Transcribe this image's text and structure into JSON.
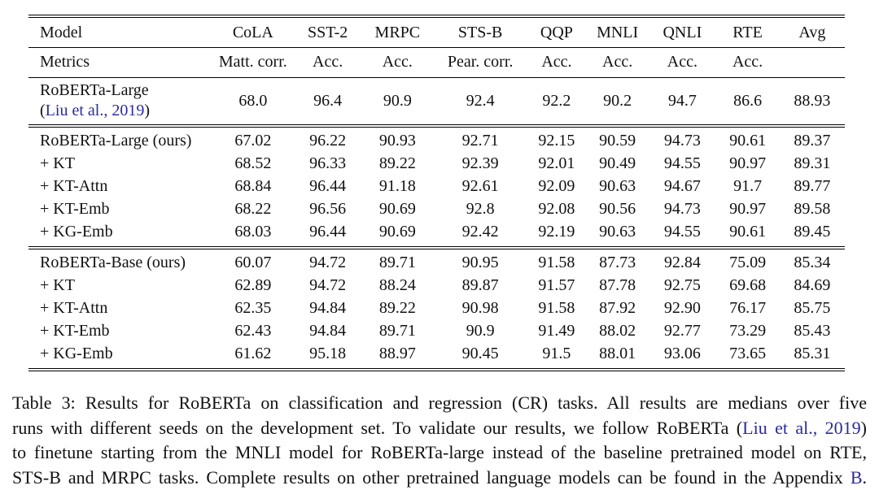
{
  "page": {
    "background": "#ffffff",
    "text_color": "#111111",
    "link_color": "#2a2aa0"
  },
  "table": {
    "header": {
      "model_label": "Model",
      "metrics_label": "Metrics",
      "tasks": [
        "CoLA",
        "SST-2",
        "MRPC",
        "STS-B",
        "QQP",
        "MNLI",
        "QNLI",
        "RTE",
        "Avg"
      ],
      "metrics": [
        "Matt. corr.",
        "Acc.",
        "Acc.",
        "Pear. corr.",
        "Acc.",
        "Acc.",
        "Acc.",
        "Acc.",
        ""
      ]
    },
    "col_widths": [
      "22.5%",
      "10%",
      "8.3%",
      "8.8%",
      "11.5%",
      "7.2%",
      "7.7%",
      "8.2%",
      "7.8%",
      "8%"
    ],
    "sections": [
      {
        "id": "baseline",
        "rows": [
          {
            "model": "RoBERTa-Large",
            "model_sub": [
              {
                "t": "("
              },
              {
                "t": "Liu et al., 2019",
                "link": true,
                "name": "citation-link"
              },
              {
                "t": ")"
              }
            ],
            "values": [
              "68.0",
              "96.4",
              "90.9",
              "92.4",
              "92.2",
              "90.2",
              "94.7",
              "86.6",
              "88.93"
            ],
            "bold": [
              0,
              0,
              0,
              0,
              1,
              0,
              0,
              0,
              0
            ]
          }
        ]
      },
      {
        "id": "roberta-large",
        "rows": [
          {
            "model": "RoBERTa-Large (ours)",
            "values": [
              "67.02",
              "96.22",
              "90.93",
              "92.71",
              "92.15",
              "90.59",
              "94.73",
              "90.61",
              "89.37"
            ],
            "bold": [
              0,
              0,
              0,
              0,
              0,
              0,
              1,
              0,
              0
            ]
          },
          {
            "model": "+ KT",
            "values": [
              "68.52",
              "96.33",
              "89.22",
              "92.39",
              "92.01",
              "90.49",
              "94.55",
              "90.97",
              "89.31"
            ],
            "bold": [
              0,
              0,
              0,
              0,
              0,
              0,
              0,
              0,
              0
            ]
          },
          {
            "model": "+ KT-Attn",
            "values": [
              "68.84",
              "96.44",
              "91.18",
              "92.61",
              "92.09",
              "90.63",
              "94.67",
              "91.7",
              "89.77"
            ],
            "bold": [
              1,
              0,
              1,
              0,
              0,
              1,
              0,
              1,
              1
            ]
          },
          {
            "model": "+ KT-Emb",
            "values": [
              "68.22",
              "96.56",
              "90.69",
              "92.8",
              "92.08",
              "90.56",
              "94.73",
              "90.97",
              "89.58"
            ],
            "bold": [
              0,
              1,
              0,
              1,
              0,
              0,
              1,
              0,
              0
            ]
          },
          {
            "model": "+ KG-Emb",
            "values": [
              "68.03",
              "96.44",
              "90.69",
              "92.42",
              "92.19",
              "90.63",
              "94.55",
              "90.61",
              "89.45"
            ],
            "bold": [
              0,
              0,
              0,
              0,
              0,
              1,
              0,
              0,
              0
            ]
          }
        ]
      },
      {
        "id": "roberta-base",
        "rows": [
          {
            "model": "RoBERTa-Base (ours)",
            "values": [
              "60.07",
              "94.72",
              "89.71",
              "90.95",
              "91.58",
              "87.73",
              "92.84",
              "75.09",
              "85.34"
            ],
            "bold": [
              0,
              0,
              1,
              0,
              1,
              0,
              0,
              0,
              0
            ]
          },
          {
            "model": "+ KT",
            "values": [
              "62.89",
              "94.72",
              "88.24",
              "89.87",
              "91.57",
              "87.78",
              "92.75",
              "69.68",
              "84.69"
            ],
            "bold": [
              1,
              0,
              0,
              0,
              0,
              0,
              0,
              0,
              0
            ]
          },
          {
            "model": "+ KT-Attn",
            "values": [
              "62.35",
              "94.84",
              "89.22",
              "90.98",
              "91.58",
              "87.92",
              "92.90",
              "76.17",
              "85.75"
            ],
            "bold": [
              0,
              0,
              0,
              1,
              1,
              0,
              0,
              1,
              1
            ]
          },
          {
            "model": "+ KT-Emb",
            "values": [
              "62.43",
              "94.84",
              "89.71",
              "90.9",
              "91.49",
              "88.02",
              "92.77",
              "73.29",
              "85.43"
            ],
            "bold": [
              0,
              0,
              1,
              0,
              0,
              1,
              0,
              0,
              0
            ]
          },
          {
            "model": "+ KG-Emb",
            "values": [
              "61.62",
              "95.18",
              "88.97",
              "90.45",
              "91.5",
              "88.01",
              "93.06",
              "73.65",
              "85.31"
            ],
            "bold": [
              0,
              1,
              0,
              0,
              0,
              0,
              1,
              0,
              0
            ]
          }
        ]
      }
    ]
  },
  "caption": {
    "lines": [
      [
        {
          "t": "Table 3: Results for RoBERTa on classification and regression (CR) tasks. All results are medians over five"
        }
      ],
      [
        {
          "t": "runs with different seeds on the development set. To validate our results, we follow RoBERTa ("
        },
        {
          "t": "Liu et al., 2019",
          "link": true,
          "name": "citation-link"
        },
        {
          "t": ")"
        }
      ],
      [
        {
          "t": "to finetune starting from the MNLI model for RoBERTa-large instead of the baseline pretrained model on RTE,"
        }
      ],
      [
        {
          "t": "STS-B and MRPC tasks. Complete results on other pretrained language models can be found in the Appendix "
        },
        {
          "t": "B",
          "link": true,
          "name": "appendix-link"
        },
        {
          "t": "."
        }
      ]
    ]
  }
}
